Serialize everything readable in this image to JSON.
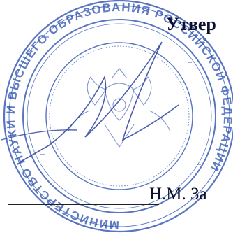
{
  "document": {
    "approval_label": "Утвер",
    "signer_name": "Н.М. За"
  },
  "stamp": {
    "ring_text": "МИНИСТЕРСТВО НАУКИ И ВЫСШЕГО ОБРАЗОВАНИЯ РОССИЙСКОЙ ФЕДЕРАЦИИ",
    "color": "#2a4fb0"
  },
  "signature": {
    "color": "#2d3f9e"
  }
}
